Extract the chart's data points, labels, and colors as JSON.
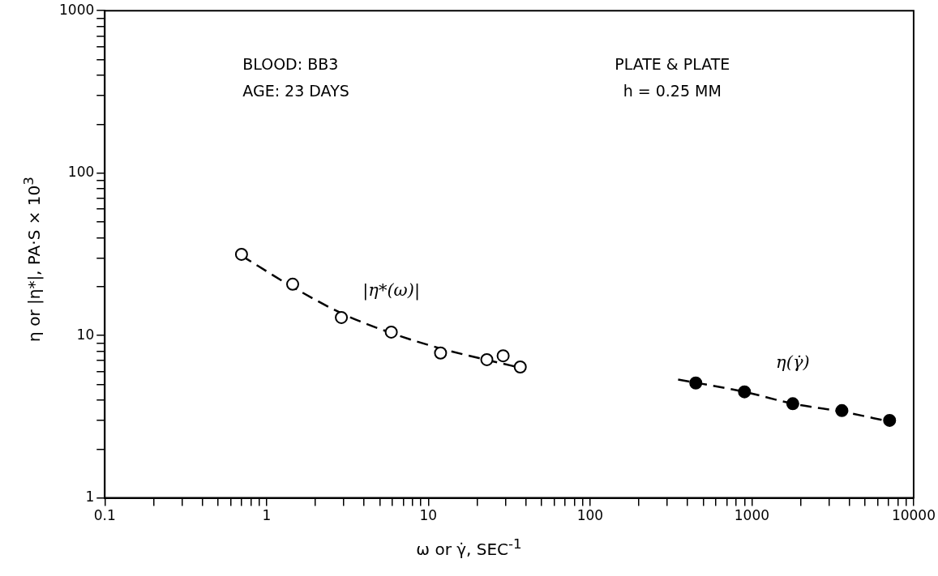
{
  "chart_data": {
    "type": "scatter",
    "xlabel": "ω or γ̇, SEC$^{-1}$",
    "ylabel": "η or |η*|, PA·S × 10$^{3}$",
    "log": "xy",
    "grid": false,
    "legend": false,
    "marker": "circle",
    "xlim": [
      0.1,
      10000
    ],
    "ylim": [
      1,
      1000
    ],
    "xticks": [
      0.1,
      {
        "value": 0.2,
        "label": null
      },
      {
        "value": 0.3,
        "label": null
      },
      {
        "value": 0.4,
        "label": null
      },
      {
        "value": 0.5,
        "label": null
      },
      {
        "value": 0.6,
        "label": null
      },
      {
        "value": 0.7,
        "label": null
      },
      {
        "value": 0.8,
        "label": null
      },
      {
        "value": 0.9,
        "label": null
      },
      1,
      {
        "value": 2,
        "label": null
      },
      {
        "value": 3,
        "label": null
      },
      {
        "value": 4,
        "label": null
      },
      {
        "value": 5,
        "label": null
      },
      {
        "value": 6,
        "label": null
      },
      {
        "value": 7,
        "label": null
      },
      {
        "value": 8,
        "label": null
      },
      {
        "value": 9,
        "label": null
      },
      10,
      {
        "value": 20,
        "label": null
      },
      {
        "value": 30,
        "label": null
      },
      {
        "value": 40,
        "label": null
      },
      {
        "value": 50,
        "label": null
      },
      {
        "value": 60,
        "label": null
      },
      {
        "value": 70,
        "label": null
      },
      {
        "value": 80,
        "label": null
      },
      {
        "value": 90,
        "label": null
      },
      100,
      {
        "value": 200,
        "label": null
      },
      {
        "value": 300,
        "label": null
      },
      {
        "value": 400,
        "label": null
      },
      {
        "value": 500,
        "label": null
      },
      {
        "value": 600,
        "label": null
      },
      {
        "value": 700,
        "label": null
      },
      {
        "value": 800,
        "label": null
      },
      {
        "value": 900,
        "label": null
      },
      1000,
      {
        "value": 2000,
        "label": null
      },
      {
        "value": 3000,
        "label": null
      },
      {
        "value": 4000,
        "label": null
      },
      {
        "value": 5000,
        "label": null
      },
      {
        "value": 6000,
        "label": null
      },
      {
        "value": 7000,
        "label": null
      },
      {
        "value": 8000,
        "label": null
      },
      {
        "value": 9000,
        "label": null
      },
      10000
    ],
    "yticks": [
      1,
      {
        "value": 2,
        "label": null
      },
      {
        "value": 3,
        "label": null
      },
      {
        "value": 4,
        "label": null
      },
      {
        "value": 5,
        "label": null
      },
      {
        "value": 6,
        "label": null
      },
      {
        "value": 7,
        "label": null
      },
      {
        "value": 8,
        "label": null
      },
      {
        "value": 9,
        "label": null
      },
      10,
      {
        "value": 20,
        "label": null
      },
      {
        "value": 30,
        "label": null
      },
      {
        "value": 40,
        "label": null
      },
      {
        "value": 50,
        "label": null
      },
      {
        "value": 60,
        "label": null
      },
      {
        "value": 70,
        "label": null
      },
      {
        "value": 80,
        "label": null
      },
      {
        "value": 90,
        "label": null
      },
      100,
      {
        "value": 200,
        "label": null
      },
      {
        "value": 300,
        "label": null
      },
      {
        "value": 400,
        "label": null
      },
      {
        "value": 500,
        "label": null
      },
      {
        "value": 600,
        "label": null
      },
      {
        "value": 700,
        "label": null
      },
      {
        "value": 800,
        "label": null
      },
      {
        "value": 900,
        "label": null
      },
      1000
    ],
    "annotations": [
      "BLOOD: BB3",
      "AGE: 23 DAYS",
      "PLATE & PLATE",
      "h = 0.25 MM"
    ],
    "series": [
      {
        "name": "|η*(ω)|",
        "color": "#ffffff",
        "x": [
          0.7,
          1.45,
          2.9,
          5.9,
          11.9,
          23,
          29,
          37
        ],
        "values": [
          31.6,
          20.7,
          12.9,
          10.5,
          7.8,
          7.1,
          7.5,
          6.4
        ]
      },
      {
        "name": "η(γ̇)",
        "color": "#000000",
        "x": [
          450,
          900,
          1790,
          3600,
          7100
        ],
        "values": [
          5.1,
          4.5,
          3.8,
          3.45,
          3.0
        ]
      },
      {
        "type": "line",
        "line_style": "dashed",
        "marker": "none",
        "color": "#000000",
        "x": [
          0.7,
          1.5,
          3,
          6,
          12,
          24,
          38
        ],
        "values": [
          31,
          19.5,
          13.5,
          10.3,
          8.3,
          7.0,
          6.3
        ]
      },
      {
        "type": "line",
        "line_style": "dashed",
        "marker": "none",
        "color": "#000000",
        "x": [
          350,
          900,
          1800,
          3600,
          7100
        ],
        "values": [
          5.35,
          4.5,
          3.8,
          3.4,
          2.95
        ]
      }
    ]
  }
}
